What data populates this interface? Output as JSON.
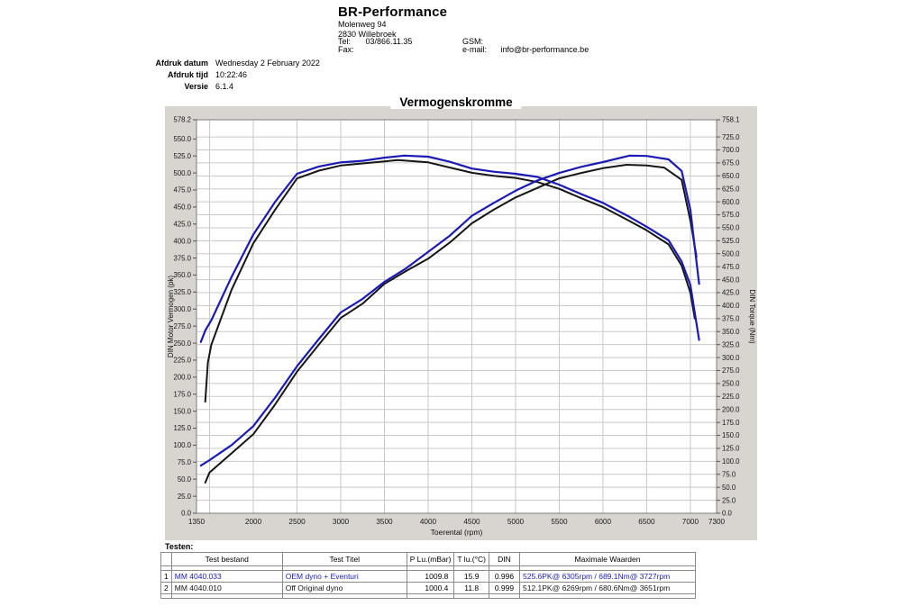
{
  "header": {
    "company": "BR-Performance",
    "address1": "Molenweg 94",
    "address2": "2830 Willebroek",
    "tel_label": "Tel:",
    "tel": "03/866.11.35",
    "fax_label": "Fax:",
    "fax": "",
    "gsm_label": "GSM:",
    "gsm": "",
    "email_label": "e-mail:",
    "email": "info@br-performance.be"
  },
  "meta": {
    "rows": [
      {
        "label": "Afdruk datum",
        "value": "Wednesday 2 February 2022"
      },
      {
        "label": "Afdruk tijd",
        "value": "10:22:46"
      },
      {
        "label": "Versie",
        "value": "6.1.4"
      }
    ]
  },
  "chart_data": {
    "type": "line",
    "title": "Vermogenskromme",
    "xlabel": "Toerental (rpm)",
    "ylabel_left": "DIN Motor Vermogen (pk)",
    "ylabel_right": "DIN Torque (Nm)",
    "xlim": [
      1350,
      7300
    ],
    "ylim_left": [
      0,
      578.2
    ],
    "ylim_right": [
      0,
      758.1
    ],
    "x_ticks": [
      1350,
      2000,
      2500,
      3000,
      3500,
      4000,
      4500,
      5000,
      5500,
      6000,
      6500,
      7000,
      7300
    ],
    "x_gridlines": [
      1500,
      2000,
      2500,
      3000,
      3500,
      4000,
      4500,
      5000,
      5500,
      6000,
      6500,
      7000
    ],
    "y_ticks_left": [
      578.2,
      550,
      525,
      500,
      475,
      450,
      425,
      400,
      375,
      350,
      325,
      300,
      275,
      250,
      225,
      200,
      175,
      150,
      125,
      100,
      75,
      50,
      25,
      0
    ],
    "y_ticks_right": [
      758.1,
      725,
      700,
      675,
      650,
      625,
      600,
      575,
      550,
      525,
      500,
      475,
      450,
      425,
      400,
      375,
      350,
      325,
      300,
      275,
      250,
      225,
      200,
      175,
      150,
      125,
      100,
      75,
      50,
      25,
      0
    ],
    "grid": "on",
    "colors": {
      "run1": "#1b1bb3",
      "run2": "#161616",
      "panel": "#d8d4cf",
      "gridline": "#c8c8c8",
      "plot_border": "#7c7c7c"
    },
    "series": [
      {
        "name": "Off Original dyno - vermogen (pk)",
        "run": 2,
        "axis": "left",
        "color": "#161616",
        "x": [
          1450,
          1500,
          1750,
          2000,
          2250,
          2500,
          2750,
          3000,
          3250,
          3500,
          3750,
          4000,
          4250,
          4500,
          4750,
          5000,
          5250,
          5500,
          5750,
          6000,
          6269,
          6500,
          6700,
          6900,
          7000,
          7070
        ],
        "y": [
          45,
          60,
          88,
          116,
          160,
          208,
          248,
          287,
          308,
          337,
          356,
          374,
          398,
          426,
          446,
          464,
          478,
          492,
          500,
          507,
          512.1,
          511,
          508,
          490,
          430,
          377
        ]
      },
      {
        "name": "Off Original dyno - koppel (Nm)",
        "run": 2,
        "axis": "right",
        "color": "#161616",
        "x": [
          1450,
          1480,
          1520,
          1750,
          2000,
          2250,
          2500,
          2750,
          3000,
          3250,
          3500,
          3651,
          4000,
          4250,
          4500,
          4750,
          5000,
          5250,
          5500,
          5750,
          6000,
          6305,
          6500,
          6750,
          6900,
          7000,
          7050
        ],
        "y": [
          215,
          290,
          325,
          430,
          520,
          585,
          645,
          660,
          670,
          674,
          678,
          680.6,
          676,
          666,
          656,
          650,
          646,
          638,
          625,
          607,
          590,
          563,
          545,
          518,
          477,
          425,
          375
        ]
      },
      {
        "name": "OEM dyno + Eventuri - vermogen (pk)",
        "run": 1,
        "axis": "left",
        "color": "#1b1bb3",
        "x": [
          1400,
          1500,
          1750,
          2000,
          2250,
          2500,
          2750,
          3000,
          3250,
          3500,
          3750,
          4000,
          4250,
          4500,
          4750,
          5000,
          5250,
          5500,
          5750,
          6000,
          6305,
          6500,
          6750,
          6900,
          7000,
          7100
        ],
        "y": [
          70,
          78,
          100,
          128,
          170,
          216,
          256,
          295,
          315,
          340,
          360,
          384,
          408,
          437,
          456,
          474,
          489,
          500,
          509,
          516,
          525.6,
          525,
          520,
          503,
          446,
          337
        ]
      },
      {
        "name": "OEM dyno + Eventuri - koppel (Nm)",
        "run": 1,
        "axis": "right",
        "color": "#1b1bb3",
        "x": [
          1400,
          1450,
          1520,
          1750,
          2000,
          2250,
          2500,
          2750,
          3000,
          3250,
          3500,
          3727,
          4000,
          4250,
          4500,
          4750,
          5000,
          5250,
          5500,
          5750,
          6000,
          6305,
          6500,
          6750,
          6900,
          7000,
          7100
        ],
        "y": [
          330,
          352,
          372,
          455,
          537,
          600,
          654,
          668,
          676,
          679,
          685,
          689.1,
          687,
          677,
          664,
          658,
          654,
          648,
          633,
          615,
          598,
          571,
          552,
          526,
          485,
          440,
          334
        ]
      }
    ]
  },
  "table": {
    "caption": "Testen:",
    "headers": [
      "",
      "Test bestand",
      "Test Titel",
      "P Lu.(mBar)",
      "T lu.(°C)",
      "DIN",
      "Maximale Waarden"
    ],
    "rows": [
      {
        "num": "1",
        "file": "MM 4040.033",
        "title": "OEM dyno + Eventuri",
        "p_lu": "1009.8",
        "t_lu": "15.9",
        "din": "0.996",
        "max": "525.6PK@ 6305rpm / 689.1Nm@ 3727rpm",
        "color": "#1b1bb3"
      },
      {
        "num": "2",
        "file": "MM 4040.010",
        "title": "Off Original dyno",
        "p_lu": "1000.4",
        "t_lu": "11.8",
        "din": "0.999",
        "max": "512.1PK@ 6269rpm / 680.6Nm@ 3651rpm",
        "color": "#161616"
      }
    ]
  }
}
